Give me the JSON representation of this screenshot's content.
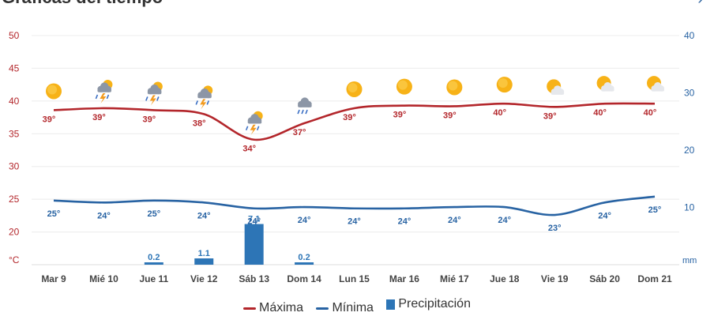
{
  "page": {
    "title": "Gráficas del tiempo",
    "nav_icon": "chevron-right-icon"
  },
  "chart_data": {
    "type": "line",
    "categories": [
      "Mar 9",
      "Mié 10",
      "Jue 11",
      "Vie 12",
      "Sáb 13",
      "Dom 14",
      "Lun 15",
      "Mar 16",
      "Mié 17",
      "Jue 18",
      "Vie 19",
      "Sáb 20",
      "Dom 21"
    ],
    "left_axis": {
      "unit": "°C",
      "min": 15,
      "max": 50,
      "ticks": [
        "20",
        "25",
        "30",
        "35",
        "40",
        "45",
        "50"
      ]
    },
    "right_axis": {
      "unit": "mm",
      "min": 0,
      "max": 40,
      "ticks": [
        "10",
        "20",
        "30",
        "40"
      ]
    },
    "series": [
      {
        "name": "Máxima",
        "color": "#b3262b",
        "axis": "left",
        "values": [
          38.6,
          38.9,
          38.6,
          38.0,
          34.1,
          36.6,
          38.9,
          39.3,
          39.2,
          39.6,
          39.1,
          39.6,
          39.6
        ],
        "labels": [
          "39°",
          "39°",
          "39°",
          "38°",
          "34°",
          "37°",
          "39°",
          "39°",
          "39°",
          "40°",
          "39°",
          "40°",
          "40°"
        ]
      },
      {
        "name": "Mínima",
        "color": "#2863a3",
        "axis": "left",
        "values": [
          24.8,
          24.5,
          24.8,
          24.5,
          23.6,
          23.8,
          23.6,
          23.6,
          23.8,
          23.8,
          22.6,
          24.5,
          25.4
        ],
        "labels": [
          "25°",
          "24°",
          "25°",
          "24°",
          "24°",
          "24°",
          "24°",
          "24°",
          "24°",
          "24°",
          "23°",
          "24°",
          "25°"
        ]
      },
      {
        "name": "Precipitación",
        "color": "#2d75b6",
        "axis": "right",
        "kind": "bar",
        "values": [
          0,
          0,
          0.2,
          1.1,
          7.1,
          0.2,
          0,
          0,
          0,
          0,
          0,
          0,
          0
        ],
        "labels": [
          "",
          "",
          "0.2",
          "1.1",
          "7.1",
          "0.2",
          "",
          "",
          "",
          "",
          "",
          "",
          ""
        ]
      }
    ],
    "weather_icons": [
      "sun-icon",
      "storm-icon",
      "storm-icon",
      "storm-icon",
      "storm-icon",
      "rain-icon",
      "sun-icon",
      "sun-icon",
      "sun-icon",
      "sun-icon",
      "partly-cloudy-icon",
      "partly-cloudy-icon",
      "partly-cloudy-icon"
    ],
    "grid": true,
    "legend_position": "bottom",
    "legend": [
      "Máxima",
      "Mínima",
      "Precipitación"
    ]
  }
}
